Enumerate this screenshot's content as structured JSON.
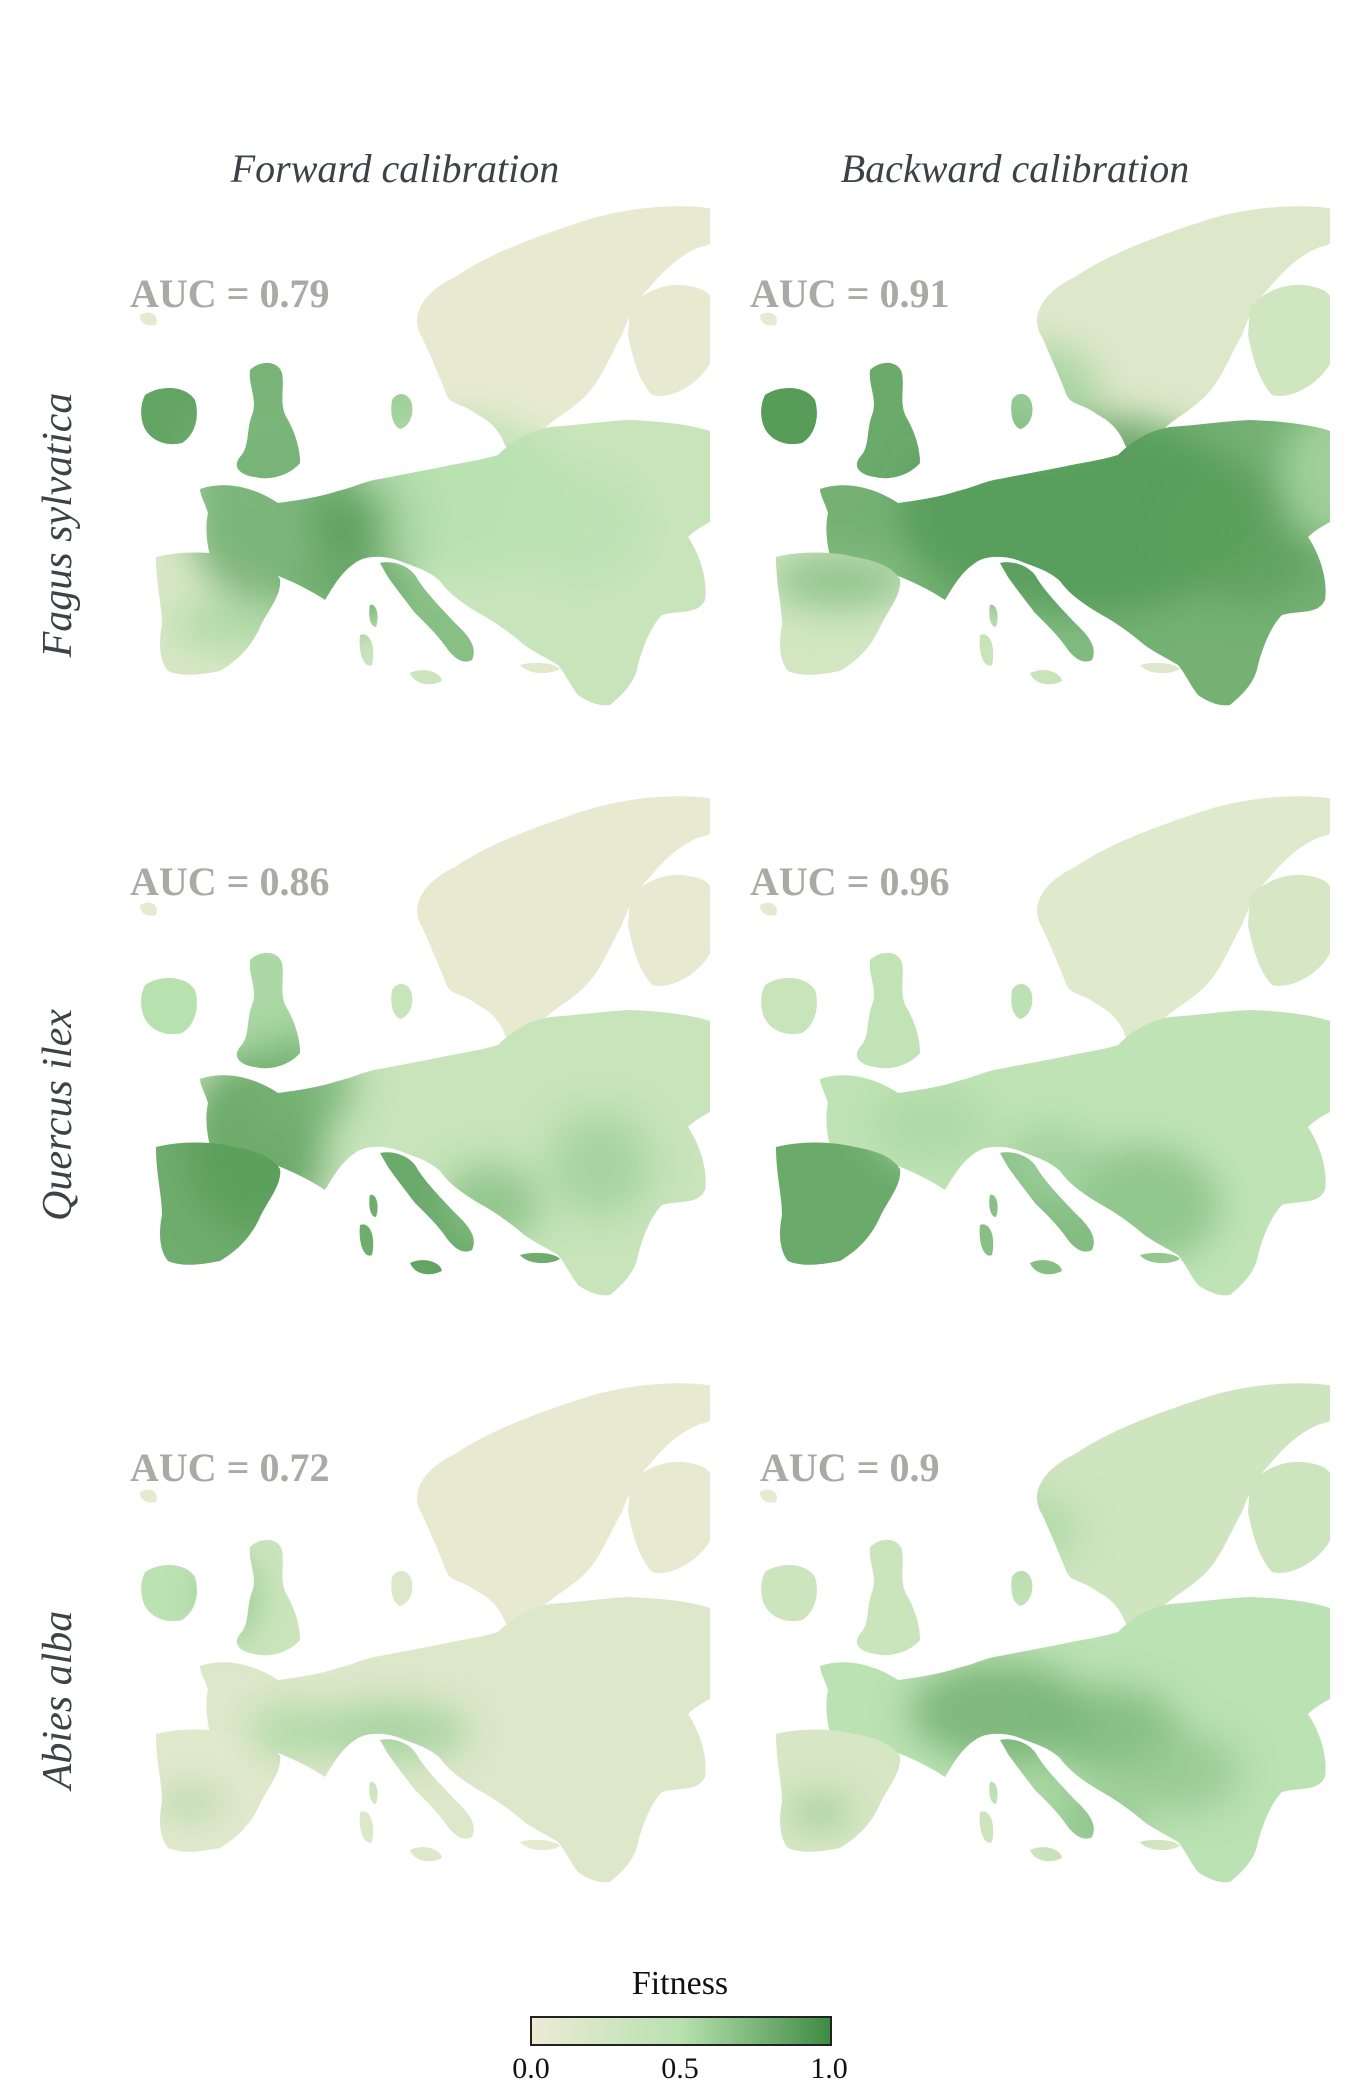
{
  "columns": [
    "Forward calibration",
    "Backward calibration"
  ],
  "species": [
    "Fagus sylvatica",
    "Quercus ilex",
    "Abies alba"
  ],
  "panels": [
    {
      "species": "Fagus sylvatica",
      "calibration": "Forward calibration",
      "auc_label": "AUC = 0.79",
      "auc": 0.79
    },
    {
      "species": "Fagus sylvatica",
      "calibration": "Backward calibration",
      "auc_label": "AUC = 0.91",
      "auc": 0.91
    },
    {
      "species": "Quercus ilex",
      "calibration": "Forward calibration",
      "auc_label": "AUC = 0.86",
      "auc": 0.86
    },
    {
      "species": "Quercus ilex",
      "calibration": "Backward calibration",
      "auc_label": "AUC = 0.96",
      "auc": 0.96
    },
    {
      "species": "Abies alba",
      "calibration": "Forward calibration",
      "auc_label": "AUC = 0.72",
      "auc": 0.72
    },
    {
      "species": "Abies alba",
      "calibration": "Backward calibration",
      "auc_label": "AUC = 0.9",
      "auc": 0.9
    }
  ],
  "legend": {
    "title": "Fitness",
    "ticks": [
      "0.0",
      "0.5",
      "1.0"
    ],
    "colors": {
      "low": "#ecebd4",
      "mid": "#b7e1af",
      "high": "#3f8b44"
    }
  }
}
